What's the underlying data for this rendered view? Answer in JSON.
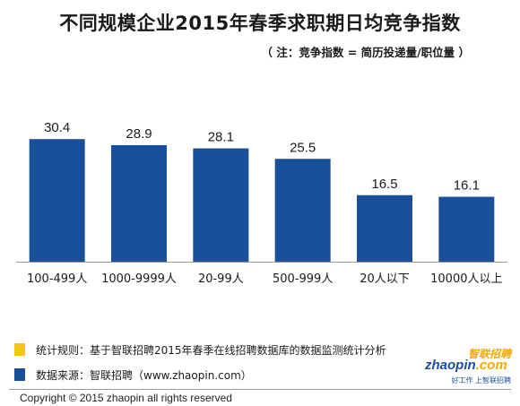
{
  "header": {
    "title": "不同规模企业2015年春季求职期日均竞争指数",
    "subtitle": "（ 注：竞争指数 = 简历投递量/职位量 ）"
  },
  "chart_data": {
    "type": "bar",
    "categories": [
      "100-499人",
      "1000-9999人",
      "20-99人",
      "500-999人",
      "20人以下",
      "10000人以上"
    ],
    "values": [
      30.4,
      28.9,
      28.1,
      25.5,
      16.5,
      16.1
    ],
    "value_labels": [
      "30.4",
      "28.9",
      "28.1",
      "25.5",
      "16.5",
      "16.1"
    ],
    "ylim": [
      0,
      34
    ],
    "grid": false,
    "bar_color": "#1a4f9c",
    "axis_color": "#9a9a9a"
  },
  "legend": {
    "items": [
      {
        "label": "统计规则：基于智联招聘2015年春季在线招聘数据库的数据监测统计分析",
        "color": "#f5c518"
      },
      {
        "label": "数据来源：智联招聘（www.zhaopin.com）",
        "color": "#1a4f9c"
      }
    ]
  },
  "logo": {
    "name": "智联招聘",
    "domain_text": "zhaopin",
    "domain_suffix": ".com",
    "slogan": "好工作  上智联招聘"
  },
  "footer": {
    "copyright": "Copyright  ©  2015 zhaopin all rights reserved"
  }
}
